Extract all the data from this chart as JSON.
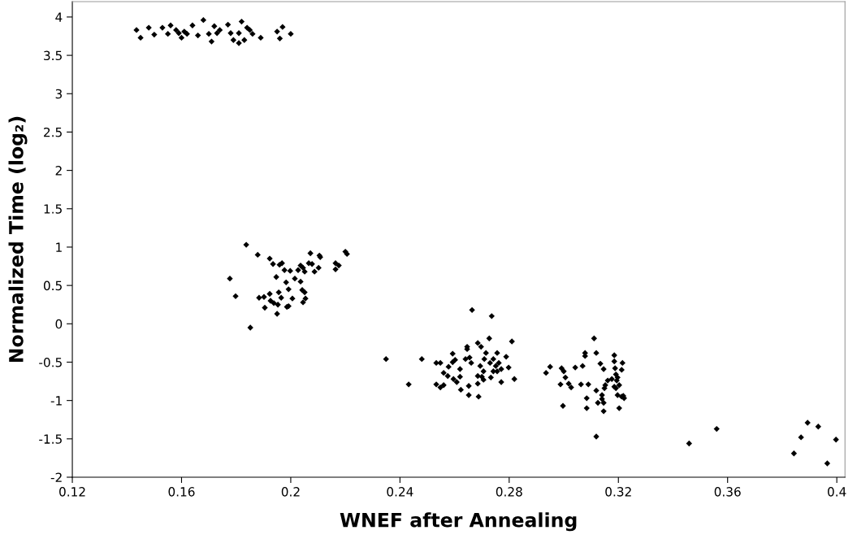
{
  "chart_data": {
    "type": "scatter",
    "xlabel": "WNEF after Annealing",
    "ylabel": "Normalized Time (log₂)",
    "xlim": [
      0.12,
      0.403
    ],
    "ylim": [
      -2,
      4.2
    ],
    "xticks": [
      0.12,
      0.16,
      0.2,
      0.24,
      0.28,
      0.32,
      0.36,
      0.4
    ],
    "yticks": [
      -2,
      -1.5,
      -1,
      -0.5,
      0,
      0.5,
      1,
      1.5,
      2,
      2.5,
      3,
      3.5,
      4
    ],
    "grid": false,
    "legend": false,
    "marker": "diamond",
    "series": [
      {
        "color": "#000000",
        "x": [
          0.1435,
          0.145,
          0.148,
          0.15,
          0.153,
          0.155,
          0.156,
          0.158,
          0.159,
          0.16,
          0.161,
          0.162,
          0.164,
          0.166,
          0.168,
          0.17,
          0.171,
          0.172,
          0.173,
          0.174,
          0.177,
          0.178,
          0.179,
          0.181,
          0.181,
          0.182,
          0.183,
          0.184,
          0.185,
          0.186,
          0.189,
          0.195,
          0.196,
          0.197,
          0.2,
          0.1837,
          0.1879,
          0.1777,
          0.1798,
          0.1852,
          0.1923,
          0.1935,
          0.1959,
          0.1968,
          0.1947,
          0.1977,
          0.1998,
          0.2015,
          0.1983,
          0.1992,
          0.2036,
          0.2027,
          0.2045,
          0.2051,
          0.2072,
          0.2066,
          0.2078,
          0.2105,
          0.2108,
          0.2102,
          0.2087,
          0.2164,
          0.2176,
          0.2164,
          0.22,
          0.2206,
          0.2036,
          0.2042,
          0.2051,
          0.1956,
          0.1923,
          0.1902,
          0.1884,
          0.1926,
          0.1938,
          0.1965,
          0.2006,
          0.2054,
          0.2045,
          0.1953,
          0.1986,
          0.1992,
          0.1905,
          0.195,
          0.2349,
          0.2432,
          0.248,
          0.2533,
          0.2548,
          0.2533,
          0.2548,
          0.256,
          0.2578,
          0.256,
          0.2575,
          0.2593,
          0.2602,
          0.2593,
          0.262,
          0.2596,
          0.2608,
          0.262,
          0.2623,
          0.2646,
          0.2646,
          0.264,
          0.2655,
          0.2661,
          0.2652,
          0.2652,
          0.2664,
          0.2685,
          0.2697,
          0.2694,
          0.2706,
          0.2715,
          0.2709,
          0.2685,
          0.2685,
          0.27,
          0.2706,
          0.2688,
          0.2727,
          0.2736,
          0.2742,
          0.273,
          0.2733,
          0.2756,
          0.2751,
          0.2762,
          0.2742,
          0.2756,
          0.2771,
          0.2771,
          0.2789,
          0.2798,
          0.281,
          0.2819,
          0.2935,
          0.295,
          0.2992,
          0.3,
          0.3006,
          0.2988,
          0.3018,
          0.3027,
          0.2997,
          0.3042,
          0.3069,
          0.3063,
          0.309,
          0.3078,
          0.3078,
          0.3111,
          0.3119,
          0.3134,
          0.3146,
          0.3119,
          0.3084,
          0.3084,
          0.3125,
          0.314,
          0.314,
          0.3146,
          0.3146,
          0.3149,
          0.3152,
          0.3161,
          0.3176,
          0.3185,
          0.3185,
          0.3188,
          0.3191,
          0.3197,
          0.3194,
          0.3185,
          0.3191,
          0.3203,
          0.3215,
          0.3212,
          0.3197,
          0.3212,
          0.3221,
          0.3218,
          0.3203,
          0.3119,
          0.3459,
          0.356,
          0.3843,
          0.3869,
          0.3893,
          0.3932,
          0.3965,
          0.3997
        ],
        "values": [
          3.83,
          3.73,
          3.86,
          3.77,
          3.86,
          3.78,
          3.89,
          3.83,
          3.79,
          3.73,
          3.81,
          3.78,
          3.89,
          3.76,
          3.96,
          3.78,
          3.68,
          3.88,
          3.79,
          3.83,
          3.9,
          3.79,
          3.7,
          3.66,
          3.79,
          3.94,
          3.7,
          3.86,
          3.83,
          3.78,
          3.73,
          3.81,
          3.72,
          3.87,
          3.78,
          1.03,
          0.9,
          0.59,
          0.36,
          -0.05,
          0.85,
          0.78,
          0.77,
          0.79,
          0.61,
          0.7,
          0.69,
          0.59,
          0.54,
          0.45,
          0.76,
          0.7,
          0.73,
          0.68,
          0.92,
          0.79,
          0.78,
          0.89,
          0.87,
          0.73,
          0.68,
          0.79,
          0.76,
          0.71,
          0.94,
          0.91,
          0.55,
          0.44,
          0.41,
          0.41,
          0.39,
          0.35,
          0.34,
          0.3,
          0.27,
          0.34,
          0.33,
          0.33,
          0.28,
          0.25,
          0.22,
          0.23,
          0.21,
          0.13,
          -0.46,
          -0.79,
          -0.46,
          -0.51,
          -0.51,
          -0.79,
          -0.83,
          -0.8,
          -0.56,
          -0.64,
          -0.68,
          -0.39,
          -0.47,
          -0.5,
          -0.59,
          -0.72,
          -0.76,
          -0.69,
          -0.86,
          -0.3,
          -0.33,
          -0.46,
          -0.44,
          -0.51,
          -0.81,
          -0.93,
          0.18,
          -0.25,
          -0.3,
          -0.55,
          -0.62,
          -0.38,
          -0.46,
          -0.68,
          -0.78,
          -0.69,
          -0.73,
          -0.95,
          -0.19,
          0.1,
          -0.46,
          -0.51,
          -0.7,
          -0.38,
          -0.55,
          -0.51,
          -0.62,
          -0.62,
          -0.59,
          -0.76,
          -0.43,
          -0.57,
          -0.23,
          -0.72,
          -0.64,
          -0.56,
          -0.58,
          -0.62,
          -0.7,
          -0.79,
          -0.78,
          -0.83,
          -1.07,
          -0.57,
          -0.55,
          -0.79,
          -0.79,
          -0.42,
          -0.38,
          -0.19,
          -0.38,
          -0.52,
          -0.59,
          -0.87,
          -0.97,
          -1.1,
          -1.03,
          -0.93,
          -0.98,
          -1.03,
          -1.14,
          -0.84,
          -0.8,
          -0.74,
          -0.72,
          -0.41,
          -0.49,
          -0.58,
          -0.66,
          -0.7,
          -0.74,
          -0.82,
          -0.84,
          -0.8,
          -0.51,
          -0.6,
          -0.93,
          -0.95,
          -0.97,
          -0.94,
          -1.1,
          -1.47,
          -1.56,
          -1.37,
          -1.69,
          -1.48,
          -1.29,
          -1.34,
          -1.82,
          -1.51
        ]
      }
    ]
  }
}
